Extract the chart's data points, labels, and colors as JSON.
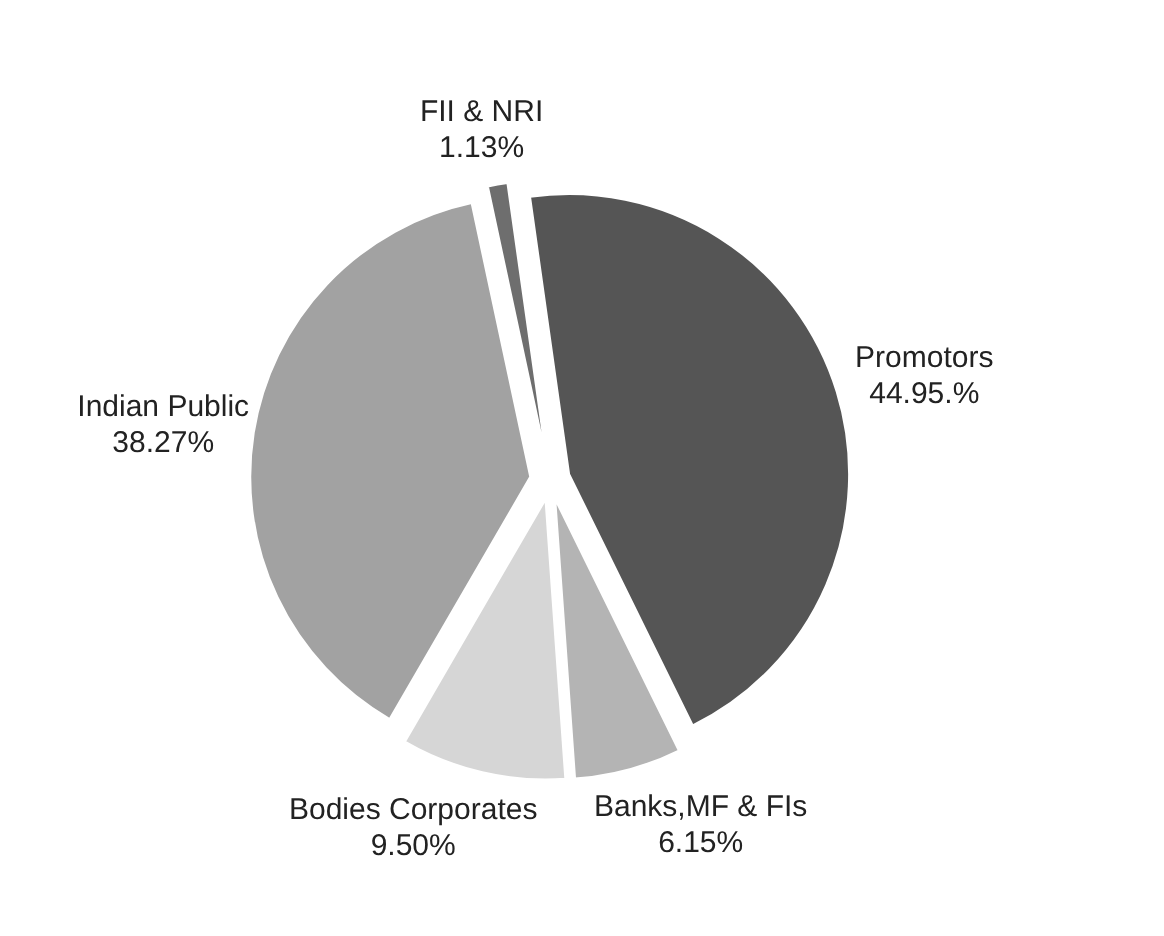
{
  "chart_data": {
    "type": "pie",
    "categories": [
      "Promotors",
      "Banks,MF & FIs",
      "Bodies Corporates",
      "Indian Public",
      "FII & NRI"
    ],
    "values": [
      44.95,
      6.15,
      9.5,
      38.27,
      1.13
    ],
    "value_labels": [
      "44.95.%",
      "6.15%",
      "9.50%",
      "38.27%",
      "1.13%"
    ],
    "colors": [
      "#555555",
      "#b4b4b4",
      "#d6d6d6",
      "#a2a2a2",
      "#6e6e6e"
    ]
  }
}
